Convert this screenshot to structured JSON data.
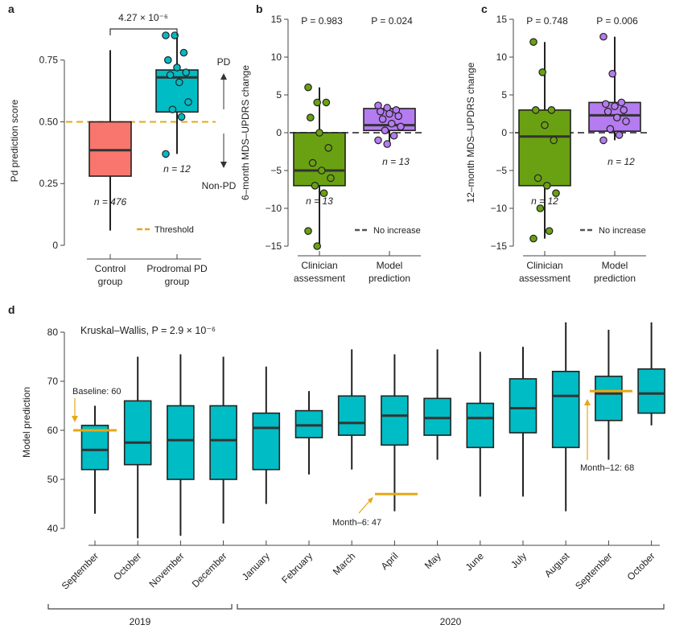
{
  "panel_letters": {
    "a": "a",
    "b": "b",
    "c": "c",
    "d": "d"
  },
  "chart_data": [
    {
      "id": "a",
      "type": "boxplot",
      "ylabel": "Pd prediction score",
      "ylim": [
        0,
        0.85
      ],
      "yticks": [
        0,
        0.25,
        0.5,
        0.75
      ],
      "ytick_labels": [
        "0",
        "0.25",
        "0.50",
        "0.75"
      ],
      "categories": [
        [
          "Control",
          "group"
        ],
        [
          "Prodromal PD",
          "group"
        ]
      ],
      "boxes": [
        {
          "name": "Control group",
          "color": "#f8766d",
          "q1": 0.28,
          "median": 0.385,
          "q3": 0.5,
          "whisker_low": 0.06,
          "whisker_high": 0.79,
          "n_label": "n = 476",
          "n_color": "#f8766d"
        },
        {
          "name": "Prodromal PD group",
          "color": "#00bcc4",
          "q1": 0.54,
          "median": 0.68,
          "q3": 0.71,
          "whisker_low": 0.37,
          "whisker_high": 0.85,
          "n_label": "n = 12",
          "n_color": "#00bcc4",
          "points": [
            0.85,
            0.85,
            0.78,
            0.75,
            0.72,
            0.7,
            0.69,
            0.66,
            0.58,
            0.55,
            0.52,
            0.37
          ]
        }
      ],
      "threshold": 0.5,
      "threshold_color": "#e6a817",
      "threshold_label": "Threshold",
      "significance": "4.27 × 10⁻⁶",
      "pd_label": "PD",
      "nonpd_label": "Non-PD"
    },
    {
      "id": "b",
      "type": "boxplot",
      "ylabel": "6–month MDS–UPDRS change",
      "ylim": [
        -15,
        15
      ],
      "yticks": [
        -15,
        -10,
        -5,
        0,
        5,
        10,
        15
      ],
      "ytick_labels": [
        "−15",
        "−10",
        "−5",
        "0",
        "5",
        "10",
        "15"
      ],
      "categories": [
        [
          "Clinician",
          "assessment"
        ],
        [
          "Model",
          "prediction"
        ]
      ],
      "p_values": [
        "P = 0.983",
        "P = 0.024"
      ],
      "boxes": [
        {
          "name": "Clinician assessment",
          "color": "#6aa112",
          "q1": -7,
          "median": -5,
          "q3": 0,
          "whisker_low": -15,
          "whisker_high": 6,
          "n_label": "n = 13",
          "n_color": "#6aa112",
          "points": [
            6,
            4,
            4,
            2,
            0,
            -2,
            -4,
            -5,
            -6,
            -7,
            -8,
            -13,
            -15
          ]
        },
        {
          "name": "Model prediction",
          "color": "#b57bf0",
          "q1": 0.3,
          "median": 1.0,
          "q3": 3.2,
          "whisker_low": -1.5,
          "whisker_high": 3.6,
          "n_label": "n = 13",
          "n_color": "#b57bf0",
          "points": [
            3.6,
            3.3,
            3.0,
            2.8,
            2.5,
            2.2,
            1.8,
            1.2,
            0.8,
            0.3,
            -0.4,
            -1.0,
            -1.5
          ]
        }
      ],
      "reference_line": 0,
      "reference_label": "No increase"
    },
    {
      "id": "c",
      "type": "boxplot",
      "ylabel": "12–month MDS–UPDRS change",
      "ylim": [
        -15,
        15
      ],
      "yticks": [
        -15,
        -10,
        -5,
        0,
        5,
        10,
        15
      ],
      "ytick_labels": [
        "−15",
        "−10",
        "−5",
        "0",
        "5",
        "10",
        "15"
      ],
      "categories": [
        [
          "Clinician",
          "assessment"
        ],
        [
          "Model",
          "prediction"
        ]
      ],
      "p_values": [
        "P = 0.748",
        "P = 0.006"
      ],
      "boxes": [
        {
          "name": "Clinician assessment",
          "color": "#6aa112",
          "q1": -7,
          "median": -0.5,
          "q3": 3,
          "whisker_low": -14,
          "whisker_high": 12,
          "n_label": "n = 12",
          "n_color": "#6aa112",
          "points": [
            12,
            8,
            3,
            3,
            1,
            -1,
            -6,
            -7,
            -8,
            -10,
            -13,
            -14
          ]
        },
        {
          "name": "Model prediction",
          "color": "#b57bf0",
          "q1": 0.2,
          "median": 2.3,
          "q3": 4.0,
          "whisker_low": -1.0,
          "whisker_high": 12.7,
          "n_label": "n = 12",
          "n_color": "#b57bf0",
          "points": [
            12.7,
            7.8,
            4.0,
            3.8,
            3.5,
            3.0,
            2.8,
            2.0,
            1.5,
            0.5,
            -0.3,
            -1.0
          ]
        }
      ],
      "reference_line": 0,
      "reference_label": "No increase"
    },
    {
      "id": "d",
      "type": "boxplot",
      "ylabel": "Model prediction",
      "ylim": [
        38,
        82
      ],
      "yticks": [
        40,
        50,
        60,
        70,
        80
      ],
      "ytick_labels": [
        "40",
        "50",
        "60",
        "70",
        "80"
      ],
      "annotation": "Kruskal–Wallis, P = 2.9 × 10⁻⁶",
      "box_color": "#00bcc4",
      "categories": [
        "September",
        "October",
        "November",
        "December",
        "January",
        "February",
        "March",
        "April",
        "May",
        "June",
        "July",
        "August",
        "September",
        "October"
      ],
      "boxes": [
        {
          "q1": 52,
          "median": 56,
          "q3": 61,
          "whisker_low": 43,
          "whisker_high": 65
        },
        {
          "q1": 53,
          "median": 57.5,
          "q3": 66,
          "whisker_low": 38,
          "whisker_high": 75
        },
        {
          "q1": 50,
          "median": 58,
          "q3": 65,
          "whisker_low": 38.5,
          "whisker_high": 75.5
        },
        {
          "q1": 50,
          "median": 58,
          "q3": 65,
          "whisker_low": 41,
          "whisker_high": 75
        },
        {
          "q1": 52,
          "median": 60.5,
          "q3": 63.5,
          "whisker_low": 45,
          "whisker_high": 73
        },
        {
          "q1": 58.5,
          "median": 61,
          "q3": 64,
          "whisker_low": 51,
          "whisker_high": 68
        },
        {
          "q1": 59,
          "median": 61.5,
          "q3": 67,
          "whisker_low": 52,
          "whisker_high": 76.5
        },
        {
          "q1": 57,
          "median": 63,
          "q3": 67,
          "whisker_low": 43.5,
          "whisker_high": 75.5
        },
        {
          "q1": 59,
          "median": 62.5,
          "q3": 66.5,
          "whisker_low": 54,
          "whisker_high": 76.5
        },
        {
          "q1": 56.5,
          "median": 62.5,
          "q3": 65.5,
          "whisker_low": 46.5,
          "whisker_high": 76
        },
        {
          "q1": 59.5,
          "median": 64.5,
          "q3": 70.5,
          "whisker_low": 46.5,
          "whisker_high": 77
        },
        {
          "q1": 56.5,
          "median": 67,
          "q3": 72,
          "whisker_low": 43.5,
          "whisker_high": 82
        },
        {
          "q1": 62,
          "median": 67.5,
          "q3": 71,
          "whisker_low": 54,
          "whisker_high": 80.5
        },
        {
          "q1": 63.5,
          "median": 67.5,
          "q3": 72.5,
          "whisker_low": 61,
          "whisker_high": 82
        }
      ],
      "markers": [
        {
          "label": "Baseline: 60",
          "value": 60,
          "category_index": 0
        },
        {
          "label": "Month–6: 47",
          "value": 47,
          "category_index": 7
        },
        {
          "label": "Month–12: 68",
          "value": 68,
          "category_index": 12
        }
      ],
      "marker_color": "#e6a817",
      "year_groups": [
        {
          "label": "2019",
          "from": 0,
          "to": 3
        },
        {
          "label": "2020",
          "from": 4,
          "to": 13
        }
      ]
    }
  ]
}
